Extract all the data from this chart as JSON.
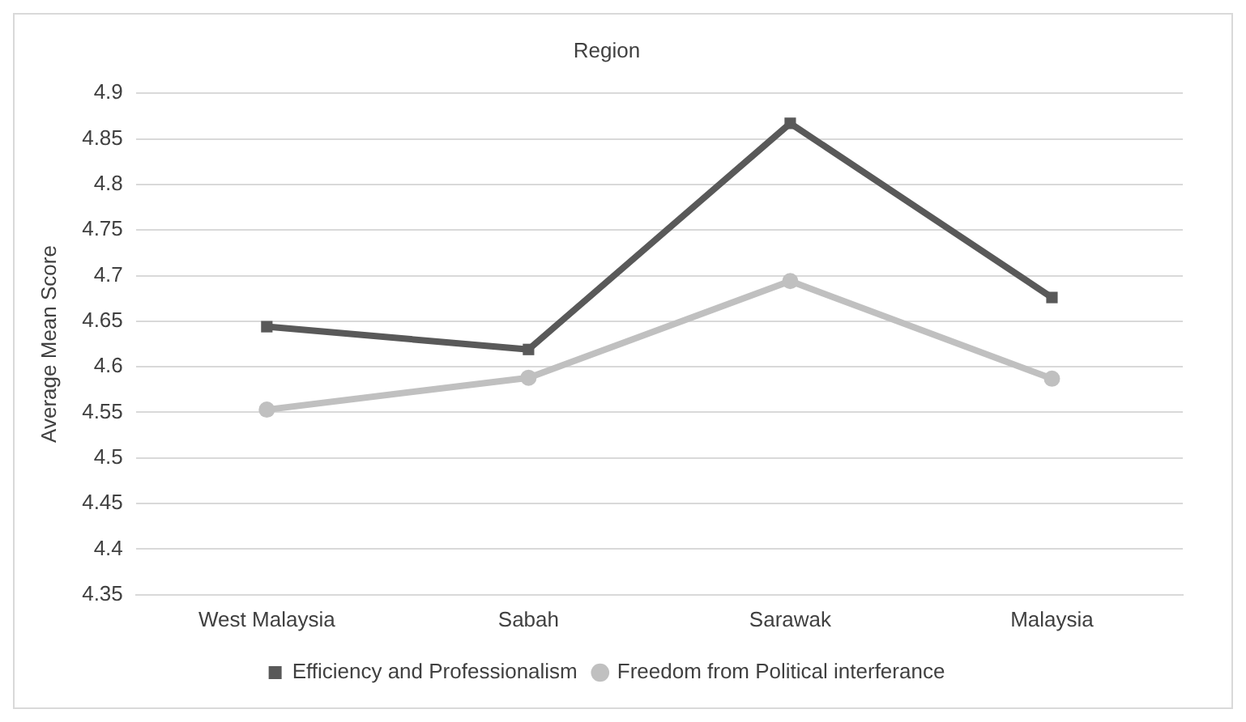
{
  "chart_data": {
    "type": "line",
    "title": "Region",
    "ylabel": "Average Mean Score",
    "categories": [
      "West Malaysia",
      "Sabah",
      "Sarawak",
      "Malaysia"
    ],
    "series": [
      {
        "name": "Efficiency and Professionalism",
        "color": "#595959",
        "marker": "square",
        "values": [
          4.644,
          4.619,
          4.867,
          4.676
        ]
      },
      {
        "name": "Freedom from Political interferance",
        "color": "#c0c0c0",
        "marker": "circle",
        "values": [
          4.553,
          4.588,
          4.694,
          4.587
        ]
      }
    ],
    "ylim": [
      4.35,
      4.9
    ],
    "yticks": [
      4.35,
      4.4,
      4.45,
      4.5,
      4.55,
      4.6,
      4.65,
      4.7,
      4.75,
      4.8,
      4.85,
      4.9
    ],
    "grid": "y",
    "legend": "bottom",
    "line_style": "solid"
  }
}
